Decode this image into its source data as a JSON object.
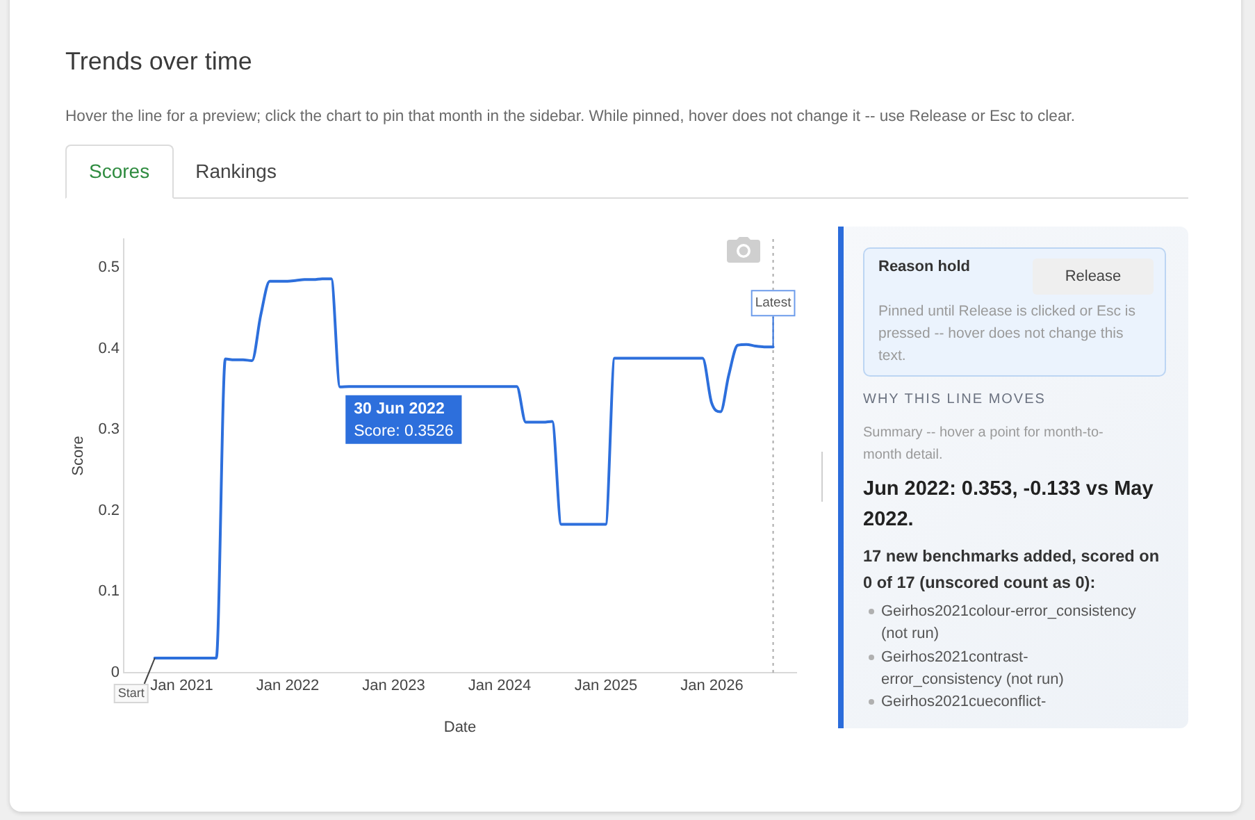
{
  "chart_data": [
    {
      "type": "line",
      "title": "Trends over time",
      "subtitle": "Hover the line for a preview; click the chart to pin that month in the sidebar. While pinned, hover does not change it -- use Release or Esc to clear.",
      "xlabel": "Date",
      "ylabel": "Score",
      "x": [
        "2020-09-30",
        "2020-10-31",
        "2020-11-30",
        "2020-12-31",
        "2021-01-31",
        "2021-02-28",
        "2021-03-31",
        "2021-04-30",
        "2021-05-31",
        "2021-06-30",
        "2021-07-31",
        "2021-08-31",
        "2021-09-30",
        "2021-10-31",
        "2021-11-30",
        "2021-12-31",
        "2022-01-31",
        "2022-02-28",
        "2022-03-31",
        "2022-04-30",
        "2022-05-31",
        "2022-06-30",
        "2022-07-31",
        "2022-08-31",
        "2022-09-30",
        "2022-10-31",
        "2022-11-30",
        "2022-12-31",
        "2023-01-31",
        "2023-02-28",
        "2023-03-31",
        "2023-04-30",
        "2023-05-31",
        "2023-06-30",
        "2023-07-31",
        "2023-08-31",
        "2023-09-30",
        "2023-10-31",
        "2023-11-30",
        "2023-12-31",
        "2024-01-31",
        "2024-02-29",
        "2024-03-31",
        "2024-04-30",
        "2024-05-31",
        "2024-06-30",
        "2024-07-31",
        "2024-08-31",
        "2024-09-30",
        "2024-10-31",
        "2024-11-30",
        "2024-12-31",
        "2025-01-31",
        "2025-02-28",
        "2025-03-31",
        "2025-04-30",
        "2025-05-31",
        "2025-06-30",
        "2025-07-31",
        "2025-08-31",
        "2025-09-30",
        "2025-10-31",
        "2025-11-30",
        "2025-12-31",
        "2026-01-31",
        "2026-02-28",
        "2026-03-31",
        "2026-04-30",
        "2026-05-31",
        "2026-06-30",
        "2026-07-31"
      ],
      "values": [
        0.018,
        0.018,
        0.018,
        0.018,
        0.018,
        0.018,
        0.018,
        0.018,
        0.387,
        0.386,
        0.386,
        0.385,
        0.441,
        0.483,
        0.483,
        0.483,
        0.484,
        0.485,
        0.485,
        0.486,
        0.486,
        0.3526,
        0.353,
        0.353,
        0.353,
        0.353,
        0.353,
        0.353,
        0.353,
        0.353,
        0.353,
        0.353,
        0.353,
        0.353,
        0.353,
        0.353,
        0.353,
        0.353,
        0.353,
        0.353,
        0.353,
        0.353,
        0.309,
        0.309,
        0.309,
        0.31,
        0.183,
        0.183,
        0.183,
        0.183,
        0.183,
        0.183,
        0.388,
        0.388,
        0.388,
        0.388,
        0.388,
        0.388,
        0.388,
        0.388,
        0.388,
        0.388,
        0.388,
        0.333,
        0.322,
        0.367,
        0.404,
        0.405,
        0.403,
        0.402,
        0.402
      ],
      "color": "#2d6fdc",
      "marker": "none",
      "line_style": "solid",
      "xlim": [
        "2020-06-15",
        "2026-10-19"
      ],
      "xticks": [
        {
          "value": "2021-01-01",
          "label": "Jan 2021"
        },
        {
          "value": "2022-01-01",
          "label": "Jan 2022"
        },
        {
          "value": "2023-01-01",
          "label": "Jan 2023"
        },
        {
          "value": "2024-01-01",
          "label": "Jan 2024"
        },
        {
          "value": "2025-01-01",
          "label": "Jan 2025"
        },
        {
          "value": "2026-01-01",
          "label": "Jan 2026"
        }
      ],
      "ylim": [
        0,
        0.535
      ],
      "yticks": [
        0,
        0.1,
        0.2,
        0.3,
        0.4,
        0.5
      ],
      "ref_lines": [
        {
          "axis": "x",
          "value": "2026-07-31",
          "color": "#aaaaaa",
          "line_style": "dotted"
        }
      ],
      "annotations": [
        "Scores",
        "Rankings",
        {
          "text": "30 Jun 2022\nScore: 0.3526",
          "x": "2022-06-30",
          "y": 0.3526
        },
        {
          "text": "Start",
          "x": "2020-09-30",
          "y": 0.018
        },
        {
          "text": "Latest",
          "x": "2026-07-31",
          "y": 0.402
        }
      ]
    },
    {
      "type": "other",
      "title": "WHY THIS LINE MOVES",
      "subtitle": "Summary -- hover a point for month-to-month detail.",
      "annotations": [
        "Reason hold",
        "Release",
        "Pinned until Release is clicked or Esc is pressed -- hover does not change this text.",
        "Jun 2022: 0.353, -0.133 vs May 2022.",
        "17 new benchmarks added, scored on 0 of 17 (unscored count as 0):",
        "Geirhos2021colour-error_consistency (not run)",
        "Geirhos2021contrast-error_consistency (not run)",
        "Geirhos2021cueconflict-"
      ]
    }
  ]
}
